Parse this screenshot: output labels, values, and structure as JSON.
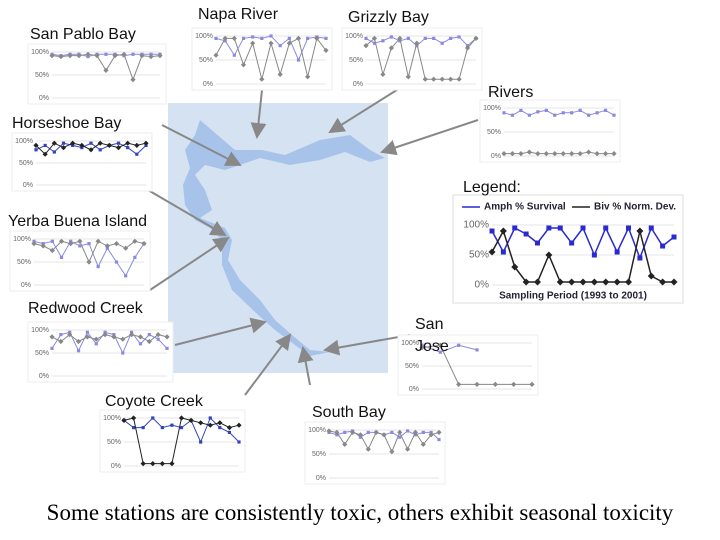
{
  "title": "Some stations are consistently toxic, others exhibit seasonal toxicity",
  "stations": [
    {
      "label": "San Pablo Bay",
      "chart": {
        "ylim": [
          0,
          100
        ],
        "yticks": [
          {
            "value": 100,
            "label": "100%"
          },
          {
            "value": 50,
            "label": "50%"
          },
          {
            "value": 0,
            "label": "0%"
          }
        ],
        "series": [
          {
            "color": "#8a8ae0",
            "values": [
              95,
              92,
              95,
              95,
              90,
              95,
              95,
              95,
              92,
              95,
              95,
              95,
              95
            ]
          },
          {
            "color": "#888888",
            "values": [
              92,
              90,
              92,
              92,
              95,
              92,
              60,
              92,
              95,
              40,
              92,
              90,
              92
            ]
          }
        ]
      }
    },
    {
      "label": "Napa River",
      "chart": {
        "ylim": [
          0,
          100
        ],
        "yticks": [
          {
            "value": 100,
            "label": "100%"
          },
          {
            "value": 50,
            "label": "50%"
          },
          {
            "value": 0,
            "label": "0%"
          }
        ],
        "series": [
          {
            "color": "#8a8ae0",
            "values": [
              95,
              90,
              60,
              95,
              98,
              95,
              100,
              80,
              95,
              50,
              95,
              98,
              95
            ]
          },
          {
            "color": "#888888",
            "values": [
              60,
              95,
              95,
              40,
              85,
              10,
              85,
              20,
              85,
              95,
              15,
              95,
              70
            ]
          }
        ]
      }
    },
    {
      "label": "Grizzly Bay",
      "chart": {
        "ylim": [
          0,
          100
        ],
        "yticks": [
          {
            "value": 100,
            "label": "100%"
          },
          {
            "value": 50,
            "label": "50%"
          },
          {
            "value": 0,
            "label": "0%"
          }
        ],
        "series": [
          {
            "color": "#8a8ae0",
            "values": [
              95,
              85,
              90,
              98,
              90,
              95,
              80,
              95,
              95,
              85,
              95,
              98,
              80,
              95
            ]
          },
          {
            "color": "#888888",
            "values": [
              80,
              95,
              20,
              75,
              95,
              15,
              85,
              10,
              10,
              10,
              10,
              10,
              75,
              95
            ]
          }
        ]
      }
    },
    {
      "label": "Rivers",
      "chart": {
        "ylim": [
          0,
          100
        ],
        "yticks": [
          {
            "value": 100,
            "label": "100%"
          },
          {
            "value": 50,
            "label": "50%"
          },
          {
            "value": 0,
            "label": "0%"
          }
        ],
        "series": [
          {
            "color": "#8a8ae0",
            "values": [
              90,
              85,
              95,
              85,
              92,
              95,
              85,
              90,
              90,
              95,
              85,
              90,
              95,
              85
            ]
          },
          {
            "color": "#888888",
            "values": [
              5,
              5,
              5,
              8,
              5,
              5,
              5,
              5,
              5,
              5,
              8,
              5,
              5,
              5
            ]
          }
        ]
      }
    },
    {
      "label": "Horseshoe Bay",
      "chart": {
        "ylim": [
          0,
          100
        ],
        "yticks": [
          {
            "value": 100,
            "label": "100%"
          },
          {
            "value": 50,
            "label": "50%"
          },
          {
            "value": 0,
            "label": "0%"
          }
        ],
        "series": [
          {
            "color": "#3344bb",
            "values": [
              80,
              90,
              75,
              95,
              90,
              85,
              95,
              80,
              90,
              95,
              85,
              70,
              90
            ]
          },
          {
            "color": "#222222",
            "values": [
              90,
              70,
              95,
              85,
              95,
              90,
              80,
              95,
              90,
              85,
              95,
              90,
              95
            ]
          }
        ]
      }
    },
    {
      "label": "Yerba Buena Island",
      "chart": {
        "ylim": [
          0,
          100
        ],
        "yticks": [
          {
            "value": 100,
            "label": "100%"
          },
          {
            "value": 50,
            "label": "50%"
          },
          {
            "value": 0,
            "label": "0%"
          }
        ],
        "series": [
          {
            "color": "#8a8ae0",
            "values": [
              95,
              90,
              95,
              60,
              95,
              85,
              90,
              40,
              80,
              50,
              20,
              60,
              90
            ]
          },
          {
            "color": "#888888",
            "values": [
              90,
              85,
              75,
              95,
              90,
              95,
              50,
              95,
              85,
              90,
              80,
              95,
              90
            ]
          }
        ]
      }
    },
    {
      "label": "Redwood Creek",
      "chart": {
        "ylim": [
          0,
          100
        ],
        "yticks": [
          {
            "value": 100,
            "label": "100%"
          },
          {
            "value": 50,
            "label": "50%"
          },
          {
            "value": 0,
            "label": "0%"
          }
        ],
        "series": [
          {
            "color": "#8a8ae0",
            "values": [
              60,
              90,
              95,
              55,
              95,
              70,
              95,
              90,
              50,
              95,
              70,
              90,
              80,
              60
            ]
          },
          {
            "color": "#888888",
            "values": [
              85,
              75,
              90,
              75,
              85,
              80,
              90,
              85,
              80,
              90,
              85,
              75,
              90,
              85
            ]
          }
        ]
      }
    },
    {
      "label": "San Jose",
      "chart": {
        "ylim": [
          0,
          100
        ],
        "yticks": [
          {
            "value": 100,
            "label": "100%"
          },
          {
            "value": 50,
            "label": "50%"
          },
          {
            "value": 0,
            "label": "0%"
          }
        ],
        "series": [
          {
            "color": "#8a8ae0",
            "values": [
              95,
              80,
              95,
              85,
              null,
              null,
              null
            ]
          },
          {
            "color": "#888888",
            "values": [
              90,
              95,
              10,
              10,
              10,
              10,
              10
            ]
          }
        ]
      }
    },
    {
      "label": "Coyote Creek",
      "chart": {
        "ylim": [
          0,
          100
        ],
        "yticks": [
          {
            "value": 100,
            "label": "100%"
          },
          {
            "value": 50,
            "label": "50%"
          },
          {
            "value": 0,
            "label": "0%"
          }
        ],
        "series": [
          {
            "color": "#3344bb",
            "values": [
              95,
              80,
              80,
              100,
              80,
              85,
              80,
              95,
              50,
              100,
              80,
              70,
              50
            ]
          },
          {
            "color": "#222222",
            "values": [
              95,
              100,
              5,
              5,
              5,
              5,
              100,
              95,
              90,
              85,
              90,
              80,
              85
            ]
          }
        ]
      }
    },
    {
      "label": "South Bay",
      "chart": {
        "ylim": [
          0,
          100
        ],
        "yticks": [
          {
            "value": 100,
            "label": "100%"
          },
          {
            "value": 50,
            "label": "50%"
          },
          {
            "value": 0,
            "label": "0%"
          }
        ],
        "series": [
          {
            "color": "#8a8ae0",
            "values": [
              95,
              90,
              95,
              98,
              85,
              95,
              95,
              90,
              95,
              85,
              98,
              90,
              95,
              95,
              80
            ]
          },
          {
            "color": "#888888",
            "values": [
              98,
              95,
              70,
              95,
              90,
              60,
              95,
              90,
              55,
              95,
              60,
              95,
              70,
              90,
              95
            ]
          }
        ]
      }
    }
  ],
  "legend": {
    "label": "Legend:",
    "chart": {
      "xlabel": "Sampling Period (1993 to 2001)",
      "ylim": [
        0,
        100
      ],
      "yticks": [
        {
          "value": 100,
          "label": "100%"
        },
        {
          "value": 50,
          "label": "50%"
        },
        {
          "value": 0,
          "label": "0%"
        }
      ],
      "series": [
        {
          "name": "Amph % Survival",
          "color": "#2a2ad0",
          "values": [
            90,
            55,
            95,
            85,
            70,
            95,
            95,
            70,
            95,
            50,
            95,
            55,
            95,
            45,
            95,
            65,
            80
          ]
        },
        {
          "name": "Biv % Norm. Dev.",
          "color": "#222222",
          "values": [
            55,
            90,
            30,
            5,
            5,
            50,
            5,
            5,
            5,
            5,
            5,
            5,
            5,
            90,
            15,
            5,
            5
          ]
        }
      ]
    }
  }
}
